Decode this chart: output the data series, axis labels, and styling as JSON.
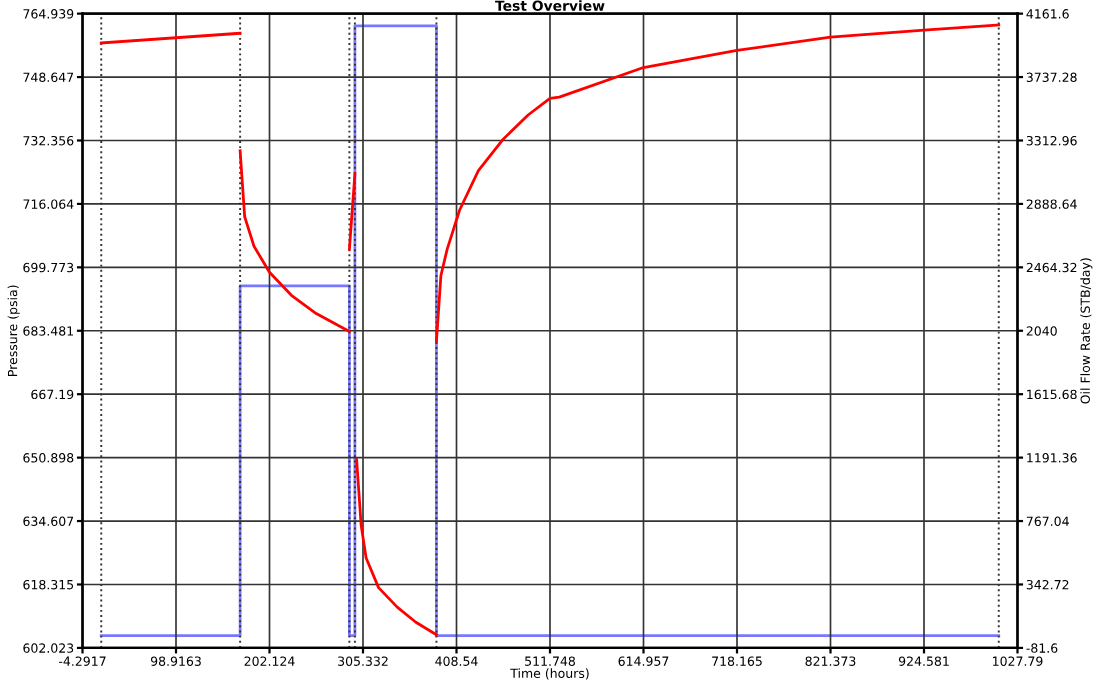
{
  "chart_data": {
    "type": "line",
    "title": "Test Overview",
    "xlabel": "Time (hours)",
    "ylabel": "Pressure (psia)",
    "y2label": "Oil Flow Rate (STB/day)",
    "xlim": [
      -4.2917,
      1027.79
    ],
    "xticks": [
      -4.2917,
      98.9163,
      202.124,
      305.332,
      408.54,
      511.748,
      614.957,
      718.165,
      821.373,
      924.581,
      1027.79
    ],
    "ylim": [
      602.023,
      764.939
    ],
    "yticks": [
      602.023,
      618.315,
      634.607,
      650.898,
      667.19,
      683.481,
      699.773,
      716.064,
      732.356,
      748.647,
      764.939
    ],
    "y2lim": [
      -81.6,
      4161.6
    ],
    "y2ticks": [
      -81.6,
      342.72,
      767.04,
      1191.36,
      1615.68,
      2040,
      2464.32,
      2888.64,
      3312.96,
      3737.28,
      4161.6
    ],
    "grid": true,
    "legend": false,
    "series": [
      {
        "color": "#ff0000",
        "x": [
          16.4,
          169.7,
          null,
          169.7,
          174.7,
          185,
          202.1,
          226.3,
          253.7,
          290.3,
          null,
          290.3,
          296.4,
          null,
          298.3,
          303.3,
          308.8,
          322.5,
          343.1,
          363.7,
          386.4,
          null,
          386.4,
          391.3,
          398.2,
          412,
          432.7,
          460.1,
          487.6,
          511.7,
          522.0,
          614.9,
          718.1,
          821.3,
          924.5,
          1007.1
        ],
        "values": [
          757.4,
          759.9,
          null,
          729.7,
          712.8,
          705.2,
          698.5,
          692.6,
          687.9,
          683.3,
          null,
          704.4,
          723.8,
          null,
          650.4,
          633.5,
          625.1,
          617.5,
          612.5,
          608.6,
          605.4,
          null,
          680.8,
          697.6,
          704.4,
          714.5,
          724.6,
          732.7,
          738.9,
          743.2,
          743.5,
          751.1,
          755.5,
          758.9,
          760.7,
          762.0
        ]
      },
      {
        "color": "#7777ff",
        "axis": "y2",
        "x": [
          16.4,
          169.7,
          169.7,
          290.3,
          290.3,
          296.4,
          296.4,
          386.4,
          386.4,
          1007.1
        ],
        "values": [
          0,
          0,
          2340,
          2340,
          0,
          0,
          4080,
          4080,
          0,
          0
        ]
      }
    ],
    "ref_lines": [
      {
        "axis": "x",
        "value": 16.4,
        "line_style": "dotted",
        "color": "#333333"
      },
      {
        "axis": "x",
        "value": 169.7,
        "line_style": "dotted",
        "color": "#333333"
      },
      {
        "axis": "x",
        "value": 290.3,
        "line_style": "dotted",
        "color": "#333333"
      },
      {
        "axis": "x",
        "value": 296.4,
        "line_style": "dotted",
        "color": "#333333"
      },
      {
        "axis": "x",
        "value": 386.4,
        "line_style": "dotted",
        "color": "#333333"
      },
      {
        "axis": "x",
        "value": 1007.1,
        "line_style": "dotted",
        "color": "#333333"
      }
    ]
  }
}
